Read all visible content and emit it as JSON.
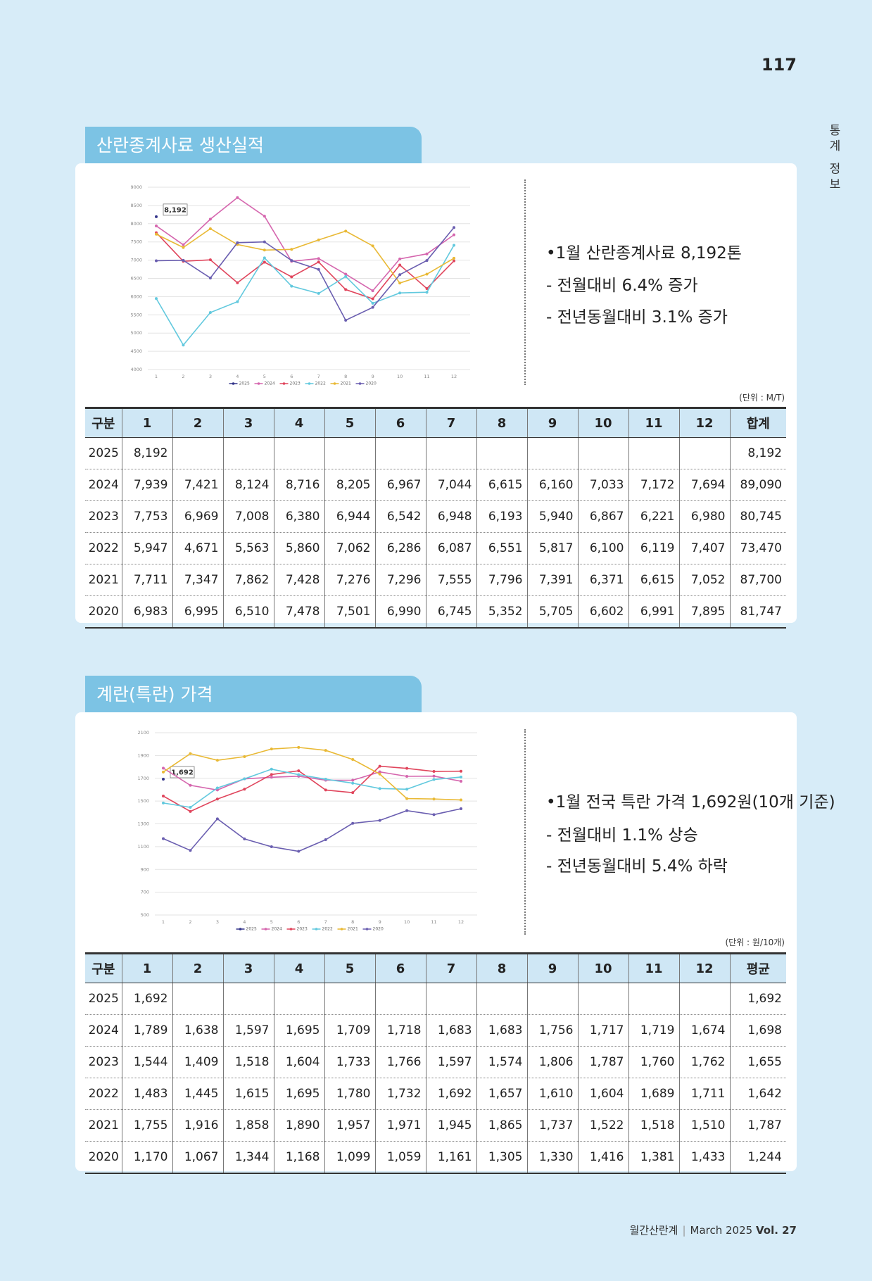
{
  "page_number": "117",
  "side_label": "통계 정보",
  "footer": {
    "magazine": "월간산란계",
    "issue": "March 2025",
    "vol": "Vol. 27"
  },
  "chart_data": [
    {
      "type": "line",
      "categories": [
        "1",
        "2",
        "3",
        "4",
        "5",
        "6",
        "7",
        "8",
        "9",
        "10",
        "11",
        "12"
      ],
      "ylim": [
        4000,
        9000
      ],
      "yticks": [
        4000,
        4500,
        5000,
        5500,
        6000,
        6500,
        7000,
        7500,
        8000,
        8500,
        9000
      ],
      "grid": true,
      "legend": "bottom",
      "series": [
        {
          "name": "2025",
          "color": "#34358a",
          "values": [
            8192,
            null,
            null,
            null,
            null,
            null,
            null,
            null,
            null,
            null,
            null,
            null
          ],
          "value_labels": [
            "8,192",
            null,
            null,
            null,
            null,
            null,
            null,
            null,
            null,
            null,
            null,
            null
          ]
        },
        {
          "name": "2024",
          "color": "#d566ae",
          "values": [
            7939,
            7421,
            8124,
            8716,
            8205,
            6967,
            7044,
            6615,
            6160,
            7033,
            7172,
            7694
          ]
        },
        {
          "name": "2023",
          "color": "#e0455c",
          "values": [
            7753,
            6969,
            7008,
            6380,
            6944,
            6542,
            6948,
            6193,
            5940,
            6867,
            6221,
            6980
          ]
        },
        {
          "name": "2022",
          "color": "#62c9de",
          "values": [
            5947,
            4671,
            5563,
            5860,
            7062,
            6286,
            6087,
            6551,
            5817,
            6100,
            6119,
            7407
          ]
        },
        {
          "name": "2021",
          "color": "#e9b935",
          "values": [
            7711,
            7347,
            7862,
            7428,
            7276,
            7296,
            7555,
            7796,
            7391,
            6371,
            6615,
            7052
          ]
        },
        {
          "name": "2020",
          "color": "#6a5eb0",
          "values": [
            6983,
            6995,
            6510,
            7478,
            7501,
            6990,
            6745,
            5352,
            5705,
            6602,
            6991,
            7895
          ]
        }
      ]
    },
    {
      "type": "line",
      "categories": [
        "1",
        "2",
        "3",
        "4",
        "5",
        "6",
        "7",
        "8",
        "9",
        "10",
        "11",
        "12"
      ],
      "ylim": [
        500,
        2100
      ],
      "yticks": [
        500,
        700,
        900,
        1100,
        1300,
        1500,
        1700,
        1900,
        2100
      ],
      "grid": true,
      "legend": "bottom",
      "series": [
        {
          "name": "2025",
          "color": "#34358a",
          "values": [
            1692,
            null,
            null,
            null,
            null,
            null,
            null,
            null,
            null,
            null,
            null,
            null
          ],
          "value_labels": [
            "1,692",
            null,
            null,
            null,
            null,
            null,
            null,
            null,
            null,
            null,
            null,
            null
          ]
        },
        {
          "name": "2024",
          "color": "#d566ae",
          "values": [
            1789,
            1638,
            1597,
            1695,
            1709,
            1718,
            1683,
            1683,
            1756,
            1717,
            1719,
            1674
          ]
        },
        {
          "name": "2023",
          "color": "#e0455c",
          "values": [
            1544,
            1409,
            1518,
            1604,
            1733,
            1766,
            1597,
            1574,
            1806,
            1787,
            1760,
            1762
          ]
        },
        {
          "name": "2022",
          "color": "#62c9de",
          "values": [
            1483,
            1445,
            1615,
            1695,
            1780,
            1732,
            1692,
            1657,
            1610,
            1604,
            1689,
            1711
          ]
        },
        {
          "name": "2021",
          "color": "#e9b935",
          "values": [
            1755,
            1916,
            1858,
            1890,
            1957,
            1971,
            1945,
            1865,
            1737,
            1522,
            1518,
            1510
          ]
        },
        {
          "name": "2020",
          "color": "#6a5eb0",
          "values": [
            1170,
            1067,
            1344,
            1168,
            1099,
            1059,
            1161,
            1305,
            1330,
            1416,
            1381,
            1433
          ]
        }
      ]
    }
  ],
  "sections": [
    {
      "title": "산란종계사료 생산실적",
      "notes": [
        "•1월 산란종계사료 8,192톤",
        "- 전월대비 6.4% 증가",
        "- 전년동월대비 3.1% 증가"
      ],
      "unit": "(단위 : M/T)",
      "table": {
        "header": [
          "구분",
          "1",
          "2",
          "3",
          "4",
          "5",
          "6",
          "7",
          "8",
          "9",
          "10",
          "11",
          "12",
          "합계"
        ],
        "rows": [
          [
            "2025",
            "8,192",
            null,
            null,
            null,
            null,
            null,
            null,
            null,
            null,
            null,
            null,
            null,
            "8,192"
          ],
          [
            "2024",
            "7,939",
            "7,421",
            "8,124",
            "8,716",
            "8,205",
            "6,967",
            "7,044",
            "6,615",
            "6,160",
            "7,033",
            "7,172",
            "7,694",
            "89,090"
          ],
          [
            "2023",
            "7,753",
            "6,969",
            "7,008",
            "6,380",
            "6,944",
            "6,542",
            "6,948",
            "6,193",
            "5,940",
            "6,867",
            "6,221",
            "6,980",
            "80,745"
          ],
          [
            "2022",
            "5,947",
            "4,671",
            "5,563",
            "5,860",
            "7,062",
            "6,286",
            "6,087",
            "6,551",
            "5,817",
            "6,100",
            "6,119",
            "7,407",
            "73,470"
          ],
          [
            "2021",
            "7,711",
            "7,347",
            "7,862",
            "7,428",
            "7,276",
            "7,296",
            "7,555",
            "7,796",
            "7,391",
            "6,371",
            "6,615",
            "7,052",
            "87,700"
          ],
          [
            "2020",
            "6,983",
            "6,995",
            "6,510",
            "7,478",
            "7,501",
            "6,990",
            "6,745",
            "5,352",
            "5,705",
            "6,602",
            "6,991",
            "7,895",
            "81,747"
          ]
        ]
      }
    },
    {
      "title": "계란(특란) 가격",
      "notes": [
        "•1월 전국 특란 가격 1,692원(10개 기준)",
        "- 전월대비 1.1% 상승",
        "- 전년동월대비 5.4% 하락"
      ],
      "unit": "(단위 : 원/10개)",
      "table": {
        "header": [
          "구분",
          "1",
          "2",
          "3",
          "4",
          "5",
          "6",
          "7",
          "8",
          "9",
          "10",
          "11",
          "12",
          "평균"
        ],
        "rows": [
          [
            "2025",
            "1,692",
            null,
            null,
            null,
            null,
            null,
            null,
            null,
            null,
            null,
            null,
            null,
            "1,692"
          ],
          [
            "2024",
            "1,789",
            "1,638",
            "1,597",
            "1,695",
            "1,709",
            "1,718",
            "1,683",
            "1,683",
            "1,756",
            "1,717",
            "1,719",
            "1,674",
            "1,698"
          ],
          [
            "2023",
            "1,544",
            "1,409",
            "1,518",
            "1,604",
            "1,733",
            "1,766",
            "1,597",
            "1,574",
            "1,806",
            "1,787",
            "1,760",
            "1,762",
            "1,655"
          ],
          [
            "2022",
            "1,483",
            "1,445",
            "1,615",
            "1,695",
            "1,780",
            "1,732",
            "1,692",
            "1,657",
            "1,610",
            "1,604",
            "1,689",
            "1,711",
            "1,642"
          ],
          [
            "2021",
            "1,755",
            "1,916",
            "1,858",
            "1,890",
            "1,957",
            "1,971",
            "1,945",
            "1,865",
            "1,737",
            "1,522",
            "1,518",
            "1,510",
            "1,787"
          ],
          [
            "2020",
            "1,170",
            "1,067",
            "1,344",
            "1,168",
            "1,099",
            "1,059",
            "1,161",
            "1,305",
            "1,330",
            "1,416",
            "1,381",
            "1,433",
            "1,244"
          ]
        ]
      }
    }
  ]
}
